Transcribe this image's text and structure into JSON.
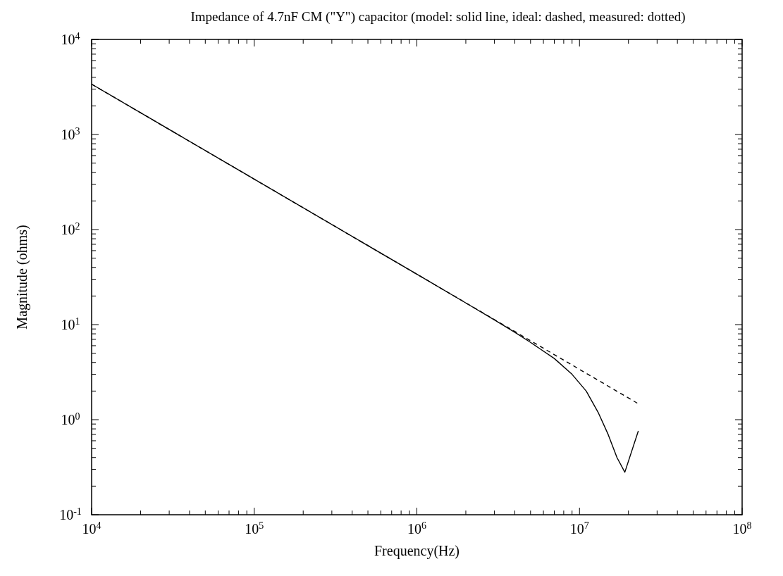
{
  "chart_data": {
    "type": "line",
    "title": "Impedance of 4.7nF CM (\"Y\") capacitor (model: solid line, ideal: dashed,  measured: dotted)",
    "xlabel": "Frequency(Hz)",
    "ylabel": "Magnitude (ohms)",
    "log": "xy",
    "grid": false,
    "xlim": [
      10000,
      100000000
    ],
    "ylim": [
      0.1,
      10000
    ],
    "xticks": [
      {
        "value": 10000,
        "label": "10$^{4}$"
      },
      {
        "value": 100000,
        "label": "10$^{5}$"
      },
      {
        "value": 1000000,
        "label": "10$^{6}$"
      },
      {
        "value": 10000000,
        "label": "10$^{7}$"
      },
      {
        "value": 100000000,
        "label": "10$^{8}$"
      }
    ],
    "yticks": [
      {
        "value": 0.1,
        "label": "10$^{-1}$"
      },
      {
        "value": 1,
        "label": "10$^{0}$"
      },
      {
        "value": 10,
        "label": "10$^{1}$"
      },
      {
        "value": 100,
        "label": "10$^{2}$"
      },
      {
        "value": 1000,
        "label": "10$^{3}$"
      },
      {
        "value": 10000,
        "label": "10$^{4}$"
      }
    ],
    "series": [
      {
        "color": "#000000",
        "line_style": "solid",
        "x": [
          10000,
          100000,
          1000000,
          2000000,
          3000000,
          4000000,
          5000000,
          7000000,
          9000000,
          11000000,
          13000000,
          15000000,
          17000000,
          19000000,
          23000000
        ],
        "values": [
          3386,
          339,
          33.9,
          16.9,
          11.2,
          8.3,
          6.5,
          4.4,
          3.0,
          2.0,
          1.2,
          0.7,
          0.4,
          0.28,
          0.76
        ]
      },
      {
        "color": "#000000",
        "line_style": "dashed",
        "x": [
          10000,
          1000000,
          23000000
        ],
        "values": [
          3386,
          33.9,
          1.47
        ]
      }
    ]
  }
}
